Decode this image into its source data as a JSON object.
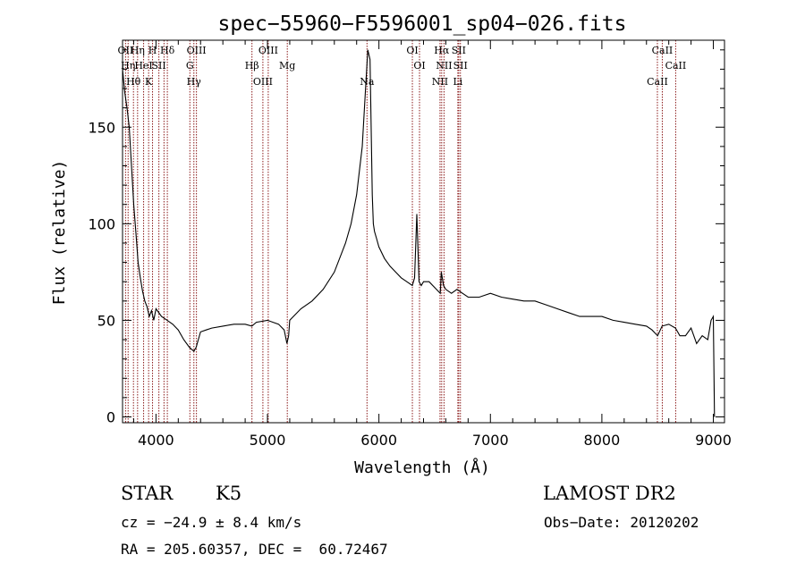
{
  "chart_data": {
    "type": "line",
    "title": "spec−55960−F5596001_sp04−026.fits",
    "xlabel": "Wavelength (Å)",
    "ylabel": "Flux (relative)",
    "xlim": [
      3700,
      9100
    ],
    "ylim": [
      -3,
      195
    ],
    "xticks": [
      4000,
      5000,
      6000,
      7000,
      8000,
      9000
    ],
    "yticks": [
      0,
      50,
      100,
      150
    ],
    "line_color": "#000000",
    "marker_color": "#8b1a1a",
    "series": [
      {
        "x": [
          3700,
          3720,
          3740,
          3760,
          3780,
          3800,
          3820,
          3840,
          3860,
          3880,
          3900,
          3920,
          3940,
          3960,
          3980,
          4000,
          4050,
          4100,
          4150,
          4200,
          4250,
          4300,
          4320,
          4340,
          4360,
          4380,
          4400,
          4450,
          4500,
          4600,
          4700,
          4800,
          4860,
          4900,
          5000,
          5100,
          5150,
          5175,
          5190,
          5200,
          5300,
          5400,
          5500,
          5600,
          5700,
          5750,
          5800,
          5850,
          5880,
          5900,
          5920,
          5940,
          5950,
          5960,
          5980,
          6000,
          6050,
          6100,
          6150,
          6200,
          6250,
          6300,
          6320,
          6340,
          6360,
          6380,
          6400,
          6450,
          6500,
          6550,
          6560,
          6580,
          6600,
          6650,
          6700,
          6750,
          6800,
          6900,
          7000,
          7100,
          7200,
          7300,
          7400,
          7500,
          7600,
          7700,
          7800,
          7900,
          8000,
          8100,
          8200,
          8300,
          8400,
          8450,
          8500,
          8540,
          8600,
          8660,
          8700,
          8750,
          8800,
          8850,
          8900,
          8950,
          8980,
          9000,
          9010
        ],
        "y": [
          180,
          168,
          160,
          150,
          130,
          110,
          95,
          80,
          72,
          65,
          60,
          57,
          52,
          55,
          50,
          56,
          52,
          50,
          48,
          45,
          40,
          36,
          35,
          34,
          36,
          40,
          44,
          45,
          46,
          47,
          48,
          48,
          47,
          49,
          50,
          48,
          45,
          38,
          42,
          50,
          56,
          60,
          66,
          75,
          90,
          100,
          115,
          140,
          170,
          190,
          185,
          115,
          100,
          96,
          92,
          88,
          82,
          78,
          75,
          72,
          70,
          68,
          72,
          105,
          70,
          68,
          70,
          70,
          67,
          64,
          75,
          68,
          66,
          64,
          66,
          64,
          62,
          62,
          64,
          62,
          61,
          60,
          60,
          58,
          56,
          54,
          52,
          52,
          52,
          50,
          49,
          48,
          47,
          45,
          42,
          47,
          48,
          46,
          42,
          42,
          46,
          38,
          42,
          40,
          50,
          52,
          0
        ]
      }
    ],
    "lines": [
      {
        "w": 3727,
        "labels": [
          "OII"
        ]
      },
      {
        "w": 3750,
        "labels": [
          "Hη"
        ]
      },
      {
        "w": 3798,
        "labels": [
          "Hθ"
        ]
      },
      {
        "w": 3835,
        "labels": [
          "Hη"
        ]
      },
      {
        "w": 3889,
        "labels": [
          "HeI"
        ]
      },
      {
        "w": 3934,
        "labels": [
          "K"
        ]
      },
      {
        "w": 3969,
        "labels": [
          "H"
        ]
      },
      {
        "w": 4026,
        "labels": [
          "SII"
        ]
      },
      {
        "w": 4072,
        "labels": [
          ""
        ]
      },
      {
        "w": 4102,
        "labels": [
          "Hδ"
        ]
      },
      {
        "w": 4304,
        "labels": [
          "G"
        ]
      },
      {
        "w": 4340,
        "labels": [
          "Hγ"
        ]
      },
      {
        "w": 4363,
        "labels": [
          "OIII"
        ]
      },
      {
        "w": 4861,
        "labels": [
          "Hβ"
        ]
      },
      {
        "w": 4959,
        "labels": [
          "OIII"
        ]
      },
      {
        "w": 5007,
        "labels": [
          "OIII"
        ]
      },
      {
        "w": 5178,
        "labels": [
          "Mg"
        ]
      },
      {
        "w": 5893,
        "labels": [
          "Na"
        ]
      },
      {
        "w": 6300,
        "labels": [
          "OI"
        ]
      },
      {
        "w": 6364,
        "labels": [
          "OI"
        ]
      },
      {
        "w": 6548,
        "labels": [
          "NII"
        ]
      },
      {
        "w": 6563,
        "labels": [
          "Hα"
        ]
      },
      {
        "w": 6584,
        "labels": [
          "NII"
        ]
      },
      {
        "w": 6708,
        "labels": [
          "Li"
        ]
      },
      {
        "w": 6716,
        "labels": [
          "SII"
        ]
      },
      {
        "w": 6731,
        "labels": [
          "SII"
        ]
      },
      {
        "w": 8498,
        "labels": [
          "CaII"
        ]
      },
      {
        "w": 8542,
        "labels": [
          "CaII"
        ]
      },
      {
        "w": 8662,
        "labels": [
          "CaII"
        ]
      }
    ]
  },
  "info": {
    "class_label": "STAR",
    "subclass": "K5",
    "survey": "LAMOST DR2",
    "cz": "cz = −24.9 ± 8.4 km/s",
    "obs_date": "Obs−Date: 20120202",
    "coords": "RA = 205.60357, DEC =  60.72467"
  }
}
